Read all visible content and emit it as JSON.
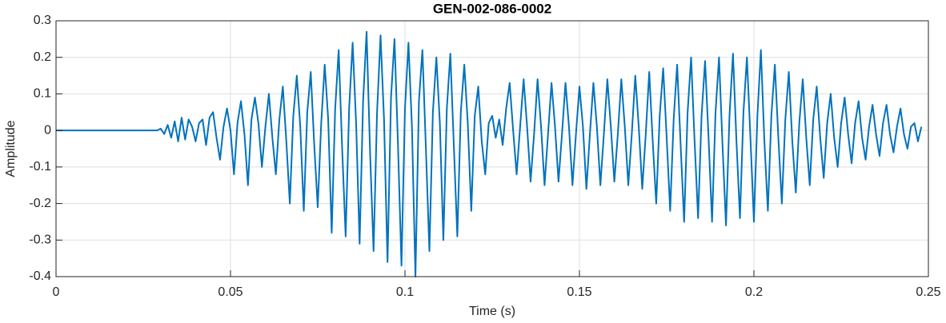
{
  "chart_data": {
    "type": "line",
    "title": "GEN-002-086-0002",
    "x_label": "Time (s)",
    "y_label": "Amplitude",
    "color": "#0072BD",
    "grid": true,
    "xlim": [
      0,
      0.25
    ],
    "ylim": [
      -0.4,
      0.3
    ],
    "xticks": [
      0,
      0.05,
      0.1,
      0.15,
      0.2,
      0.25
    ],
    "yticks": [
      -0.4,
      -0.3,
      -0.2,
      -0.1,
      0,
      0.1,
      0.2,
      0.3
    ],
    "x": [
      0,
      0.001,
      0.002,
      0.003,
      0.004,
      0.005,
      0.006,
      0.007,
      0.008,
      0.009,
      0.01,
      0.011,
      0.012,
      0.013,
      0.014,
      0.015,
      0.016,
      0.017,
      0.018,
      0.019,
      0.02,
      0.021,
      0.022,
      0.023,
      0.024,
      0.025,
      0.026,
      0.027,
      0.028,
      0.029,
      0.03,
      0.031,
      0.032,
      0.033,
      0.034,
      0.035,
      0.036,
      0.037,
      0.038,
      0.039,
      0.04,
      0.041,
      0.042,
      0.043,
      0.044,
      0.045,
      0.046,
      0.047,
      0.048,
      0.049,
      0.05,
      0.051,
      0.052,
      0.053,
      0.054,
      0.055,
      0.056,
      0.057,
      0.058,
      0.059,
      0.06,
      0.061,
      0.062,
      0.063,
      0.064,
      0.065,
      0.066,
      0.067,
      0.068,
      0.069,
      0.07,
      0.071,
      0.072,
      0.073,
      0.074,
      0.075,
      0.076,
      0.077,
      0.078,
      0.079,
      0.08,
      0.081,
      0.082,
      0.083,
      0.084,
      0.085,
      0.086,
      0.087,
      0.088,
      0.089,
      0.09,
      0.091,
      0.092,
      0.093,
      0.094,
      0.095,
      0.096,
      0.097,
      0.098,
      0.099,
      0.1,
      0.101,
      0.102,
      0.103,
      0.104,
      0.105,
      0.106,
      0.107,
      0.108,
      0.109,
      0.11,
      0.111,
      0.112,
      0.113,
      0.114,
      0.115,
      0.116,
      0.117,
      0.118,
      0.119,
      0.12,
      0.121,
      0.122,
      0.123,
      0.124,
      0.125,
      0.126,
      0.127,
      0.128,
      0.129,
      0.13,
      0.131,
      0.132,
      0.133,
      0.134,
      0.135,
      0.136,
      0.137,
      0.138,
      0.139,
      0.14,
      0.141,
      0.142,
      0.143,
      0.144,
      0.145,
      0.146,
      0.147,
      0.148,
      0.149,
      0.15,
      0.151,
      0.152,
      0.153,
      0.154,
      0.155,
      0.156,
      0.157,
      0.158,
      0.159,
      0.16,
      0.161,
      0.162,
      0.163,
      0.164,
      0.165,
      0.166,
      0.167,
      0.168,
      0.169,
      0.17,
      0.171,
      0.172,
      0.173,
      0.174,
      0.175,
      0.176,
      0.177,
      0.178,
      0.179,
      0.18,
      0.181,
      0.182,
      0.183,
      0.184,
      0.185,
      0.186,
      0.187,
      0.188,
      0.189,
      0.19,
      0.191,
      0.192,
      0.193,
      0.194,
      0.195,
      0.196,
      0.197,
      0.198,
      0.199,
      0.2,
      0.201,
      0.202,
      0.203,
      0.204,
      0.205,
      0.206,
      0.207,
      0.208,
      0.209,
      0.21,
      0.211,
      0.212,
      0.213,
      0.214,
      0.215,
      0.216,
      0.217,
      0.218,
      0.219,
      0.22,
      0.221,
      0.222,
      0.223,
      0.224,
      0.225,
      0.226,
      0.227,
      0.228,
      0.229,
      0.23,
      0.231,
      0.232,
      0.233,
      0.234,
      0.235,
      0.236,
      0.237,
      0.238,
      0.239,
      0.24,
      0.241,
      0.242,
      0.243,
      0.244,
      0.245,
      0.246,
      0.247,
      0.248
    ],
    "values": [
      0,
      0,
      0,
      0,
      0,
      0,
      0,
      0,
      0,
      0,
      0,
      0,
      0,
      0,
      0,
      0,
      0,
      0,
      0,
      0,
      0,
      0,
      0,
      0,
      0,
      0,
      0,
      0,
      0,
      0,
      0.005,
      -0.01,
      0.015,
      -0.02,
      0.025,
      -0.03,
      0.035,
      -0.025,
      0.03,
      0.01,
      -0.03,
      0.02,
      0.03,
      -0.04,
      0.035,
      0.05,
      -0.02,
      -0.08,
      0.01,
      0.06,
      0,
      -0.12,
      0.02,
      0.08,
      -0.01,
      -0.15,
      0.03,
      0.09,
      0.02,
      -0.1,
      0.01,
      0.1,
      -0.02,
      -0.12,
      0.03,
      0.12,
      -0.03,
      -0.2,
      0.04,
      0.15,
      0.01,
      -0.22,
      0.05,
      0.16,
      -0.04,
      -0.21,
      0.02,
      0.18,
      0.03,
      -0.28,
      0.06,
      0.22,
      -0.05,
      -0.29,
      0.06,
      0.24,
      0.02,
      -0.31,
      0.08,
      0.27,
      -0.06,
      -0.33,
      0.05,
      0.26,
      0.03,
      -0.36,
      0.09,
      0.25,
      -0.04,
      -0.37,
      0.06,
      0.24,
      0.01,
      -0.4,
      0.08,
      0.22,
      -0.05,
      -0.33,
      0.05,
      0.2,
      0.02,
      -0.3,
      0.06,
      0.21,
      -0.04,
      -0.29,
      0.05,
      0.18,
      0.02,
      -0.22,
      0.04,
      0.12,
      -0.03,
      -0.12,
      0.02,
      0.04,
      -0.02,
      0.03,
      -0.04,
      0.06,
      0.13,
      0,
      -0.12,
      0.01,
      0.14,
      0.01,
      -0.14,
      -0.01,
      0.14,
      0.01,
      -0.15,
      -0.01,
      0.13,
      0.01,
      -0.14,
      -0.01,
      0.13,
      0.01,
      -0.15,
      -0.01,
      0.12,
      0.01,
      -0.16,
      -0.01,
      0.13,
      0.01,
      -0.15,
      -0.01,
      0.14,
      0.01,
      -0.14,
      -0.01,
      0.14,
      0.01,
      -0.15,
      -0.01,
      0.15,
      0.01,
      -0.16,
      -0.01,
      0.16,
      -0.03,
      -0.2,
      0.04,
      0.17,
      -0.02,
      -0.22,
      0.03,
      0.18,
      -0.04,
      -0.25,
      0.05,
      0.2,
      -0.03,
      -0.24,
      0.04,
      0.19,
      -0.02,
      -0.25,
      0.05,
      0.2,
      -0.04,
      -0.26,
      0.04,
      0.21,
      -0.03,
      -0.24,
      0.05,
      0.2,
      -0.02,
      -0.25,
      0.04,
      0.22,
      -0.03,
      -0.22,
      0.04,
      0.18,
      -0.02,
      -0.2,
      0.03,
      0.16,
      -0.03,
      -0.17,
      0.02,
      0.14,
      -0.02,
      -0.15,
      0.03,
      0.12,
      -0.02,
      -0.13,
      0.02,
      0.1,
      -0.02,
      -0.1,
      0.02,
      0.09,
      -0.01,
      -0.09,
      0.02,
      0.08,
      -0.02,
      -0.08,
      0.01,
      0.07,
      -0.01,
      -0.07,
      0.02,
      0.07,
      -0.01,
      -0.06,
      0.01,
      0.06,
      -0.01,
      -0.05,
      0.01,
      0.02,
      -0.03,
      0.01
    ]
  }
}
